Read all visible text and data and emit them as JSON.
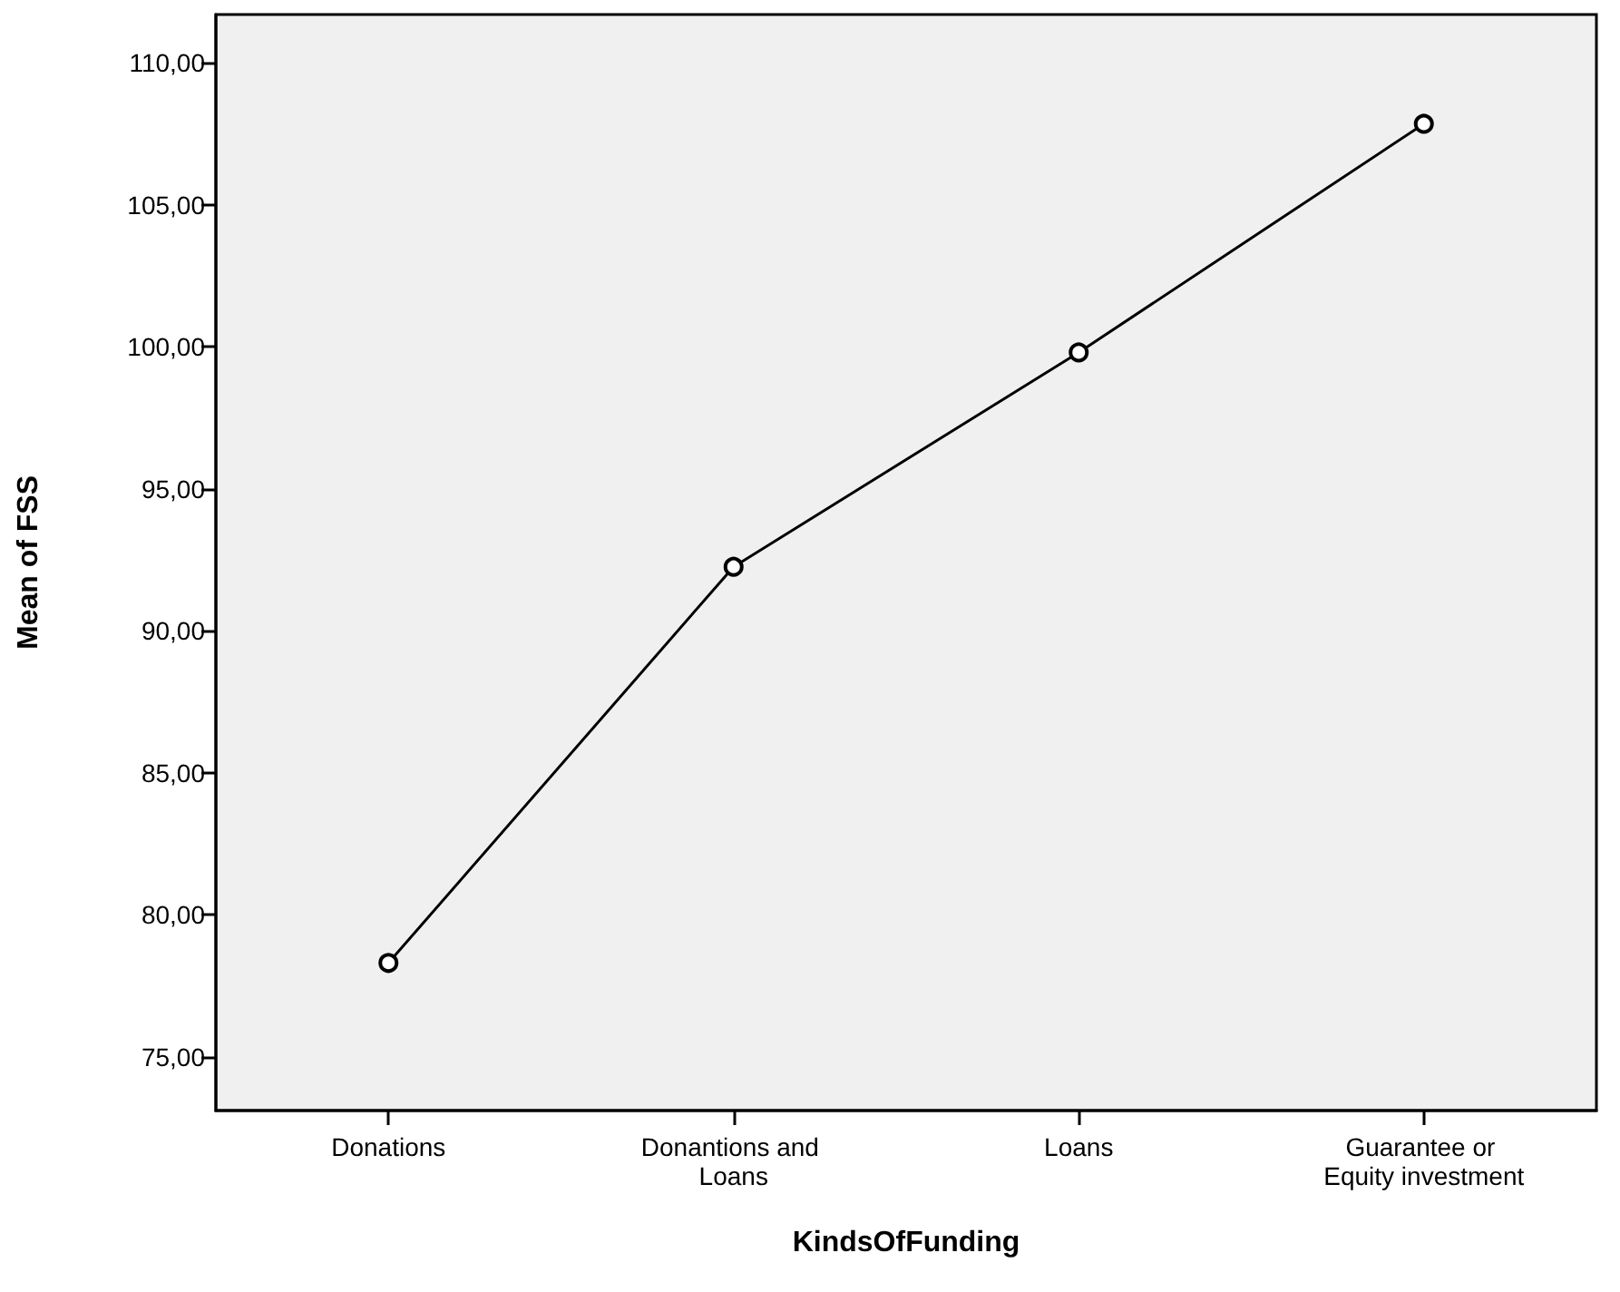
{
  "chart_data": {
    "type": "line",
    "xlabel": "KindsOfFunding",
    "ylabel": "Mean of FSS",
    "categories": [
      "Donations",
      "Donantions and Loans",
      "Loans",
      "Guarantee or Equity investment"
    ],
    "series": [
      {
        "color": "#000000",
        "values": [
          78.3,
          92.25,
          99.8,
          107.85
        ]
      }
    ],
    "ylim": [
      73.1,
      111.7
    ],
    "yticks": [
      {
        "value": 75,
        "label": "75,00"
      },
      {
        "value": 80,
        "label": "80,00"
      },
      {
        "value": 85,
        "label": "85,00"
      },
      {
        "value": 90,
        "label": "90,00"
      },
      {
        "value": 95,
        "label": "95,00"
      },
      {
        "value": 100,
        "label": "100,00"
      },
      {
        "value": 105,
        "label": "105,00"
      },
      {
        "value": 110,
        "label": "110,00"
      }
    ],
    "grid": false,
    "marker": "circle",
    "line_style": "solid"
  }
}
